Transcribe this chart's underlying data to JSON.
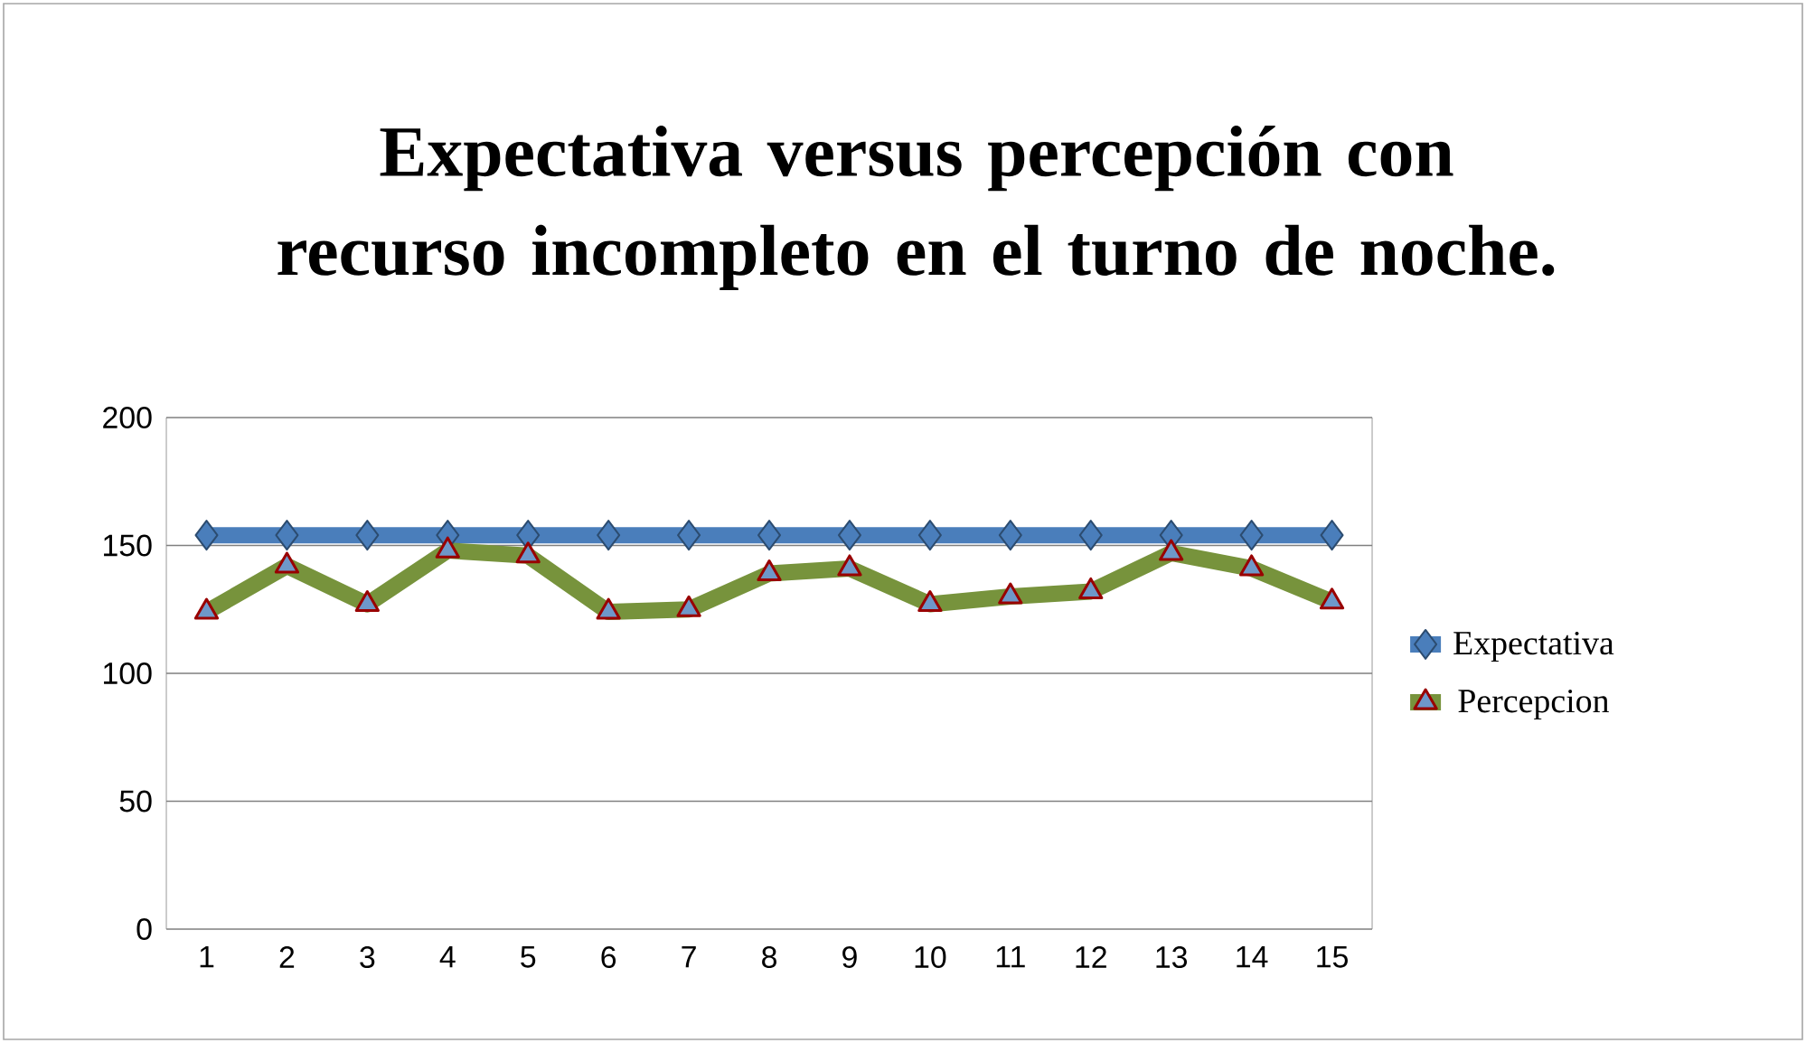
{
  "chart_data": {
    "type": "line",
    "title": "Expectativa versus percepción con recurso incompleto en el turno de noche.",
    "categories": [
      "1",
      "2",
      "3",
      "4",
      "5",
      "6",
      "7",
      "8",
      "9",
      "10",
      "11",
      "12",
      "13",
      "14",
      "15"
    ],
    "series": [
      {
        "name": "Expectativa",
        "color": "#4a7ebb",
        "marker": "diamond",
        "values": [
          154,
          154,
          154,
          154,
          154,
          154,
          154,
          154,
          154,
          154,
          154,
          154,
          154,
          154,
          154
        ]
      },
      {
        "name": "Percepcion",
        "color": "#77933c",
        "marker": "triangle",
        "values": [
          124,
          142,
          127,
          148,
          146,
          124,
          125,
          139,
          141,
          127,
          130,
          132,
          147,
          141,
          128
        ]
      }
    ],
    "ylim": [
      0,
      200
    ],
    "yticks": [
      0,
      50,
      100,
      150,
      200
    ],
    "grid": "y",
    "legend": "right"
  }
}
